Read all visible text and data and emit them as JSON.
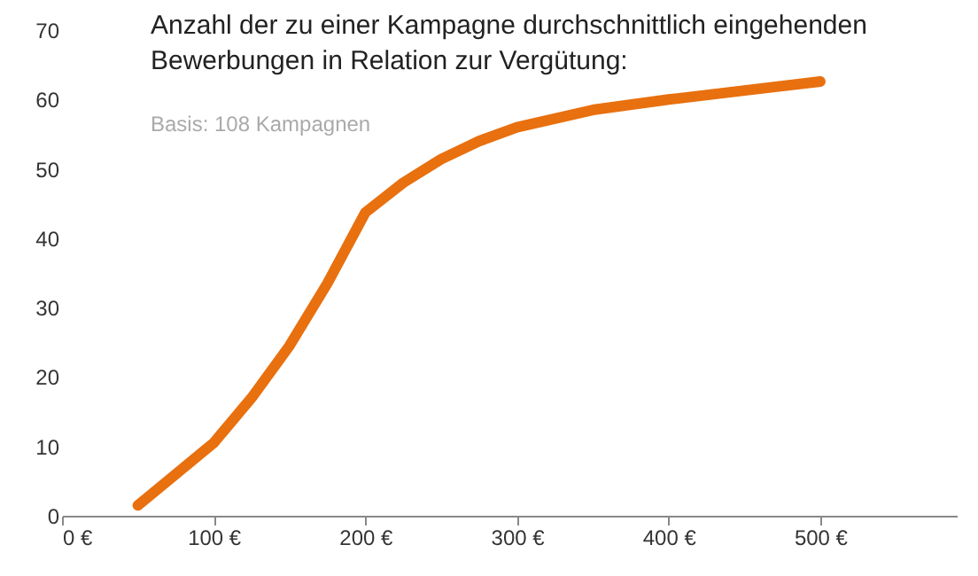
{
  "chart_data": {
    "type": "line",
    "title": "Anzahl der zu einer Kampagne durchschnittlich eingehenden\nBewerbungen in Relation zur Vergütung:",
    "annotations": [
      "Basis: 108 Kampagnen"
    ],
    "x": [
      50,
      75,
      100,
      125,
      150,
      175,
      200,
      225,
      250,
      275,
      300,
      350,
      400,
      450,
      500
    ],
    "series": [
      {
        "color": "#e8700f",
        "values": [
          1.5,
          6,
          10.5,
          17,
          24.5,
          33.5,
          43.7,
          48,
          51.4,
          54,
          56,
          58.5,
          60,
          61.3,
          62.6
        ]
      }
    ],
    "xlim": [
      0,
      590
    ],
    "ylim": [
      0,
      70
    ],
    "xticks": [
      {
        "value": 0,
        "label": "0 €"
      },
      {
        "value": 100,
        "label": "100 €"
      },
      {
        "value": 200,
        "label": "200 €"
      },
      {
        "value": 300,
        "label": "300 €"
      },
      {
        "value": 400,
        "label": "400 €"
      },
      {
        "value": 500,
        "label": "500 €"
      }
    ],
    "yticks": [
      0,
      10,
      20,
      30,
      40,
      50,
      60,
      70
    ],
    "grid": false,
    "marker": "none",
    "line_style": "solid"
  }
}
